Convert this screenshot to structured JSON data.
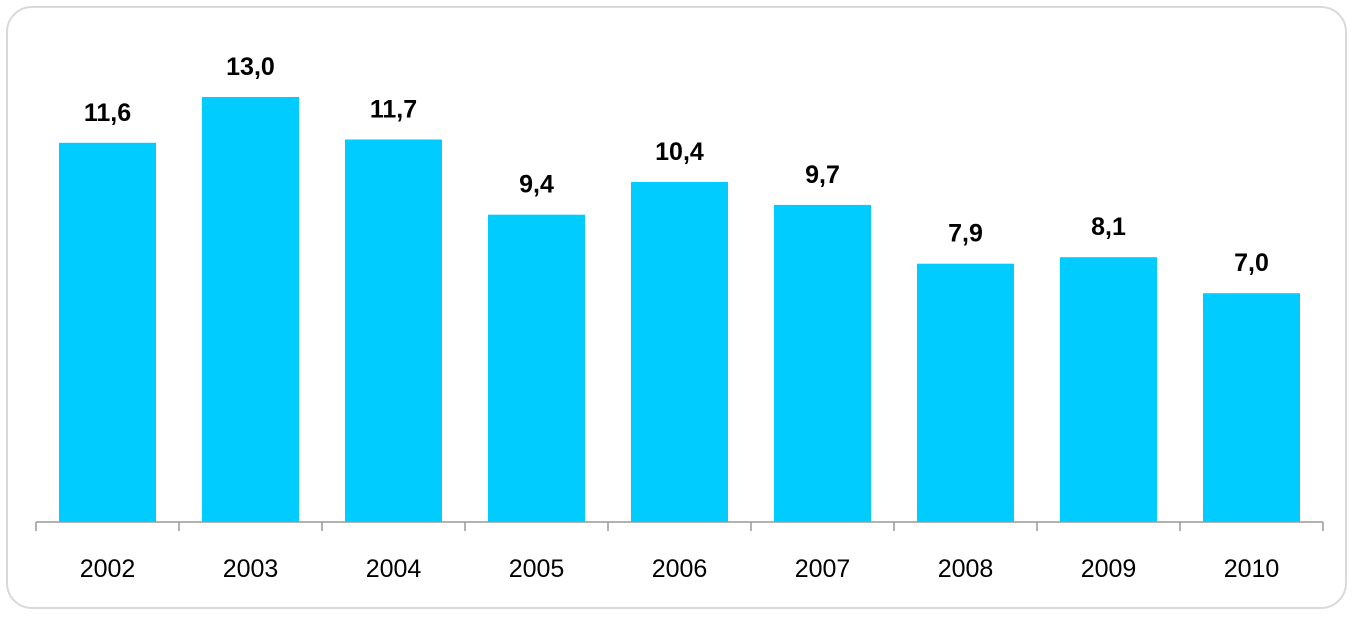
{
  "chart_data": {
    "type": "bar",
    "categories": [
      "2002",
      "2003",
      "2004",
      "2005",
      "2006",
      "2007",
      "2008",
      "2009",
      "2010"
    ],
    "values": [
      11.6,
      13.0,
      11.7,
      9.4,
      10.4,
      9.7,
      7.9,
      8.1,
      7.0
    ],
    "value_labels": [
      "11,6",
      "13,0",
      "11,7",
      "9,4",
      "10,4",
      "9,7",
      "7,9",
      "8,1",
      "7,0"
    ],
    "title": "",
    "xlabel": "",
    "ylabel": "",
    "ylim": [
      0,
      13.0
    ],
    "grid": false,
    "legend": "none",
    "bar_color": "#00ccff",
    "axis_color": "#999999",
    "frame_color": "#d9d9d9"
  }
}
